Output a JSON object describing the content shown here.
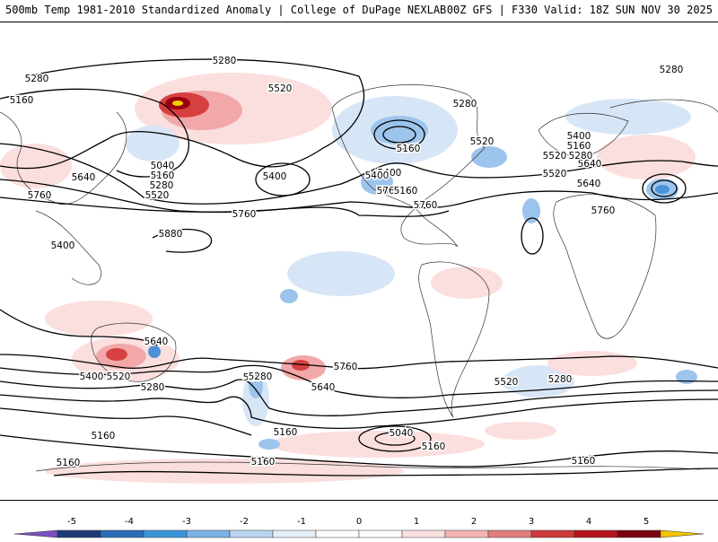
{
  "header": {
    "title": "500mb Temp 1981-2010 Standardized Anomaly | College of DuPage NEXLAB",
    "run_info": "00Z GFS | F330 Valid: 18Z SUN NOV 30 2025"
  },
  "contour_labels": [
    "5280",
    "5520",
    "5280",
    "5160",
    "5040",
    "5160",
    "5280",
    "5520",
    "5640",
    "5760",
    "5400",
    "5520",
    "5160",
    "5280",
    "5400",
    "5640",
    "5760",
    "5880",
    "5280",
    "5520",
    "5160",
    "5640",
    "5400",
    "5760",
    "5280",
    "5520",
    "5640",
    "5760",
    "5400",
    "5160",
    "5760",
    "5400",
    "5520",
    "5280",
    "5400",
    "5640",
    "5520",
    "5280",
    "5160",
    "5040",
    "5160",
    "5160",
    "5160",
    "5160",
    "5760",
    "5640",
    "5400",
    "5280",
    "5160"
  ],
  "colorbar": {
    "ticks": [
      "-5",
      "-4",
      "-3",
      "-2",
      "-1",
      "0",
      "1",
      "2",
      "3",
      "4",
      "5"
    ],
    "bins": [
      {
        "color": "#7b4fc0"
      },
      {
        "color": "#1e3a78"
      },
      {
        "color": "#2b6cb8"
      },
      {
        "color": "#3b95da"
      },
      {
        "color": "#7bb3e6"
      },
      {
        "color": "#b9d5f2"
      },
      {
        "color": "#e4eef9"
      },
      {
        "color": "#ffffff"
      },
      {
        "color": "#ffffff"
      },
      {
        "color": "#fbe0e0"
      },
      {
        "color": "#f4b4b4"
      },
      {
        "color": "#e27e7e"
      },
      {
        "color": "#cc3a3a"
      },
      {
        "color": "#b3141c"
      },
      {
        "color": "#7a0010"
      },
      {
        "color": "#f5c400"
      }
    ]
  },
  "palette": {
    "warm_light": "#fbdede",
    "warm_mid": "#f2a8a8",
    "warm_strong": "#d64040",
    "warm_extreme": "#9c0010",
    "warm_peak": "#f5d000",
    "cool_light": "#d7e6f6",
    "cool_mid": "#9cc4ec",
    "cool_strong": "#4c93d6"
  }
}
